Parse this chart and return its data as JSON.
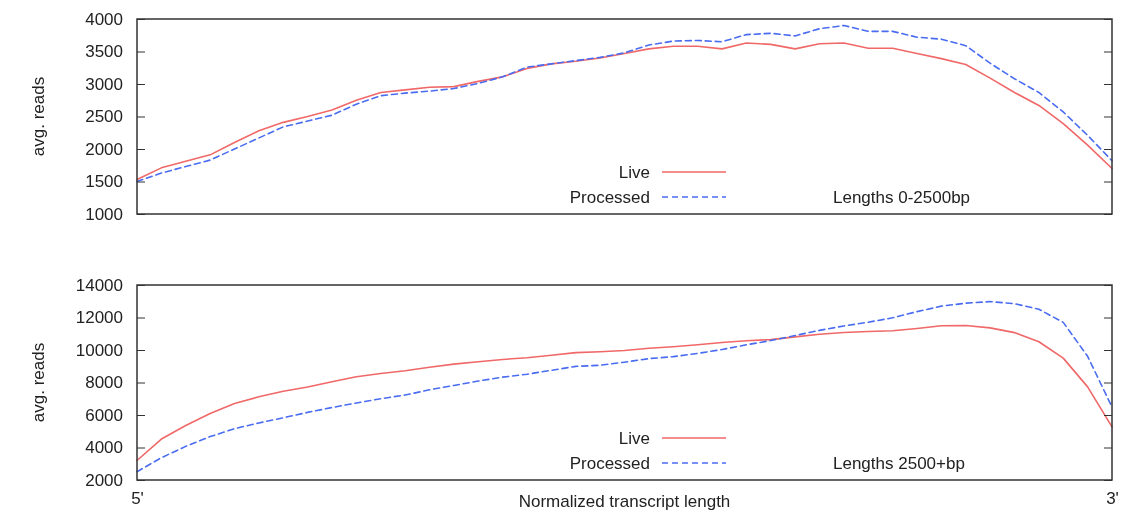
{
  "chart_data": [
    {
      "type": "line",
      "ylabel": "avg. reads",
      "categories": [
        null,
        null,
        null,
        null,
        null,
        null,
        null,
        null,
        null,
        null,
        null,
        null,
        null,
        null,
        null,
        null,
        null,
        null,
        null,
        null,
        null,
        null,
        null,
        null,
        null,
        null,
        null,
        null,
        null,
        null,
        null,
        null,
        null,
        null,
        null,
        null,
        null,
        null,
        null,
        null,
        null
      ],
      "ylim": [
        1000,
        4000
      ],
      "yticks": [
        1000,
        1500,
        2000,
        2500,
        3000,
        3500,
        4000
      ],
      "tick_labels": "y",
      "legend": "bottom",
      "annotations": [
        "Lengths 0-2500bp"
      ],
      "series": [
        {
          "name": "Live",
          "color": "#f06868",
          "line_style": "solid",
          "values": [
            1530,
            1710,
            1810,
            1910,
            2100,
            2280,
            2410,
            2500,
            2600,
            2750,
            2870,
            2910,
            2950,
            2960,
            3040,
            3110,
            3240,
            3310,
            3350,
            3400,
            3470,
            3540,
            3580,
            3580,
            3540,
            3630,
            3610,
            3540,
            3620,
            3630,
            3550,
            3550,
            3470,
            3390,
            3300,
            3090,
            2870,
            2670,
            2390,
            2060,
            1700
          ]
        },
        {
          "name": "Processed",
          "color": "#4a6cf0",
          "line_style": "dashed",
          "values": [
            1500,
            1630,
            1730,
            1830,
            2000,
            2170,
            2340,
            2430,
            2520,
            2690,
            2820,
            2860,
            2890,
            2930,
            3010,
            3110,
            3260,
            3310,
            3360,
            3410,
            3480,
            3600,
            3660,
            3670,
            3650,
            3760,
            3780,
            3740,
            3850,
            3900,
            3810,
            3810,
            3720,
            3690,
            3590,
            3320,
            3080,
            2870,
            2570,
            2210,
            1820
          ]
        }
      ]
    },
    {
      "type": "line",
      "ylabel": "avg. reads",
      "xlabel": "Normalized transcript length",
      "categories": [
        "5'",
        null,
        null,
        null,
        null,
        null,
        null,
        null,
        null,
        null,
        null,
        null,
        null,
        null,
        null,
        null,
        null,
        null,
        null,
        null,
        null,
        null,
        null,
        null,
        null,
        null,
        null,
        null,
        null,
        null,
        null,
        null,
        null,
        null,
        null,
        null,
        null,
        null,
        null,
        null,
        "3'"
      ],
      "ylim": [
        2000,
        14000
      ],
      "yticks": [
        2000,
        4000,
        6000,
        8000,
        10000,
        12000,
        14000
      ],
      "legend": "bottom",
      "annotations": [
        "Lengths 2500+bp"
      ],
      "series": [
        {
          "name": "Live",
          "color": "#f06868",
          "line_style": "solid",
          "values": [
            3200,
            4520,
            5350,
            6090,
            6710,
            7120,
            7460,
            7720,
            8050,
            8350,
            8550,
            8720,
            8940,
            9130,
            9280,
            9420,
            9520,
            9680,
            9840,
            9890,
            9970,
            10110,
            10200,
            10320,
            10460,
            10570,
            10640,
            10810,
            10970,
            11080,
            11140,
            11180,
            11320,
            11490,
            11510,
            11360,
            11070,
            10510,
            9500,
            7730,
            5270
          ]
        },
        {
          "name": "Processed",
          "color": "#4a6cf0",
          "line_style": "dashed",
          "values": [
            2510,
            3370,
            4070,
            4670,
            5160,
            5510,
            5830,
            6160,
            6460,
            6740,
            7000,
            7230,
            7550,
            7820,
            8090,
            8330,
            8510,
            8750,
            8990,
            9060,
            9250,
            9470,
            9590,
            9790,
            10030,
            10320,
            10580,
            10890,
            11210,
            11480,
            11710,
            11980,
            12360,
            12700,
            12880,
            12980,
            12850,
            12510,
            11700,
            9610,
            6490
          ]
        }
      ]
    }
  ]
}
